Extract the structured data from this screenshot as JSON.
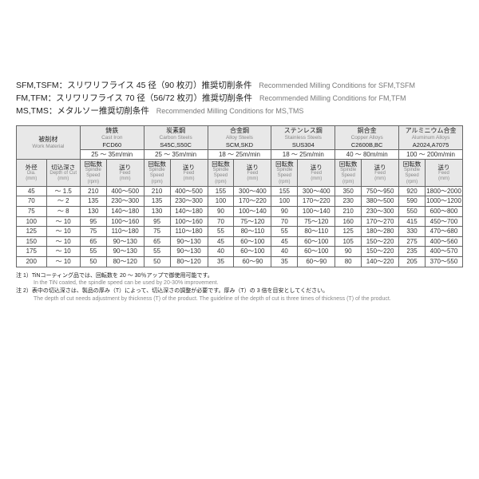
{
  "headings": [
    {
      "jp": "SFM,TSFM：スリワリフライス 45 径（90 枚刃）推奨切削条件",
      "en": "Recommended Milling Conditions for SFM,TSFM"
    },
    {
      "jp": "FM,TFM：スリワリフライス 70 径（56/72 枚刃）推奨切削条件",
      "en": "Recommended Milling Conditions for FM,TFM"
    },
    {
      "jp": "MS,TMS：メタルソー推奨切削条件",
      "en": "Recommended Milling Conditions for MS,TMS"
    }
  ],
  "row_labels": {
    "work_material": {
      "jp": "被削材",
      "en": "Work Material"
    },
    "cutting_speed": {
      "jp": "切削速度",
      "en": "Cutting Speed"
    },
    "dia": {
      "jp": "外径",
      "en": "Dia.",
      "unit": "(mm)"
    },
    "doc": {
      "jp": "切込深さ",
      "en": "Depth of Cut",
      "unit": "(mm)"
    },
    "rpm": {
      "jp": "回転数",
      "en": "Spindle Speed",
      "unit": "(rpm)"
    },
    "feed": {
      "jp": "送り",
      "en": "Feed",
      "unit": "(mm)"
    }
  },
  "materials": [
    {
      "jp": "鋳鉄",
      "en": "Cast Iron",
      "grade": "FCD60",
      "speed": "25 ～ 35m/min"
    },
    {
      "jp": "炭素鋼",
      "en": "Carbon Steels",
      "grade": "S45C,S50C",
      "speed": "25 ～ 35m/min"
    },
    {
      "jp": "合金鋼",
      "en": "Alloy Steels",
      "grade": "SCM,SKD",
      "speed": "18 ～ 25m/min"
    },
    {
      "jp": "ステンレス鋼",
      "en": "Stainless Steels",
      "grade": "SUS304",
      "speed": "18 ～ 25m/min"
    },
    {
      "jp": "銅合金",
      "en": "Copper Alloys",
      "grade": "C2600B,BC",
      "speed": "40 ～ 80m/min"
    },
    {
      "jp": "アルミニウム合金",
      "en": "Aluminum Alloys",
      "grade": "A2024,A7075",
      "speed": "100 ～ 200m/min"
    }
  ],
  "rows": [
    {
      "dia": "45",
      "doc": "～ 1.5",
      "vals": [
        [
          "210",
          "400～500"
        ],
        [
          "210",
          "400～500"
        ],
        [
          "155",
          "300～400"
        ],
        [
          "155",
          "300～400"
        ],
        [
          "350",
          "750～950"
        ],
        [
          "920",
          "1800～2000"
        ]
      ]
    },
    {
      "dia": "70",
      "doc": "～ 2",
      "vals": [
        [
          "135",
          "230～300"
        ],
        [
          "135",
          "230～300"
        ],
        [
          "100",
          "170～220"
        ],
        [
          "100",
          "170～220"
        ],
        [
          "230",
          "380～500"
        ],
        [
          "590",
          "1000～1200"
        ]
      ]
    },
    {
      "dia": "75",
      "doc": "～ 8",
      "vals": [
        [
          "130",
          "140～180"
        ],
        [
          "130",
          "140～180"
        ],
        [
          "90",
          "100～140"
        ],
        [
          "90",
          "100～140"
        ],
        [
          "210",
          "230～300"
        ],
        [
          "550",
          "600～800"
        ]
      ]
    },
    {
      "dia": "100",
      "doc": "～ 10",
      "vals": [
        [
          "95",
          "100～160"
        ],
        [
          "95",
          "100～160"
        ],
        [
          "70",
          "75～120"
        ],
        [
          "70",
          "75～120"
        ],
        [
          "160",
          "170～270"
        ],
        [
          "415",
          "450～700"
        ]
      ]
    },
    {
      "dia": "125",
      "doc": "～ 10",
      "vals": [
        [
          "75",
          "110～180"
        ],
        [
          "75",
          "110～180"
        ],
        [
          "55",
          "80～110"
        ],
        [
          "55",
          "80～110"
        ],
        [
          "125",
          "180～280"
        ],
        [
          "330",
          "470～680"
        ]
      ]
    },
    {
      "dia": "150",
      "doc": "～ 10",
      "vals": [
        [
          "65",
          "90～130"
        ],
        [
          "65",
          "90～130"
        ],
        [
          "45",
          "60～100"
        ],
        [
          "45",
          "60～100"
        ],
        [
          "105",
          "150～220"
        ],
        [
          "275",
          "400～560"
        ]
      ]
    },
    {
      "dia": "175",
      "doc": "～ 10",
      "vals": [
        [
          "55",
          "90～130"
        ],
        [
          "55",
          "90～130"
        ],
        [
          "40",
          "60～100"
        ],
        [
          "40",
          "60～100"
        ],
        [
          "90",
          "150～220"
        ],
        [
          "235",
          "400～570"
        ]
      ]
    },
    {
      "dia": "200",
      "doc": "～ 10",
      "vals": [
        [
          "50",
          "80～120"
        ],
        [
          "50",
          "80～120"
        ],
        [
          "35",
          "60～90"
        ],
        [
          "35",
          "60～90"
        ],
        [
          "80",
          "140～220"
        ],
        [
          "205",
          "370～550"
        ]
      ]
    }
  ],
  "notes": [
    {
      "jp": "注 1）TiNコーティング品では、回転数を 20 ～ 30％アップで御使用可能です。",
      "en": "In the TiN coated, the spindle speed can be used by 20-30% improvement."
    },
    {
      "jp": "注 2）表中の切込深さは、製品の厚み（T）によって、切込深さの調整が必要です。厚み（T）の 3 倍を目安としてください。",
      "en": "The depth of cut needs adjustment by thickness (T) of the product. The guideline of the depth of cut is three times of thickness (T) of the product."
    }
  ],
  "colors": {
    "header_bg": "#e8e8e8",
    "border": "#666666",
    "text": "#333333",
    "subtext": "#888888"
  }
}
